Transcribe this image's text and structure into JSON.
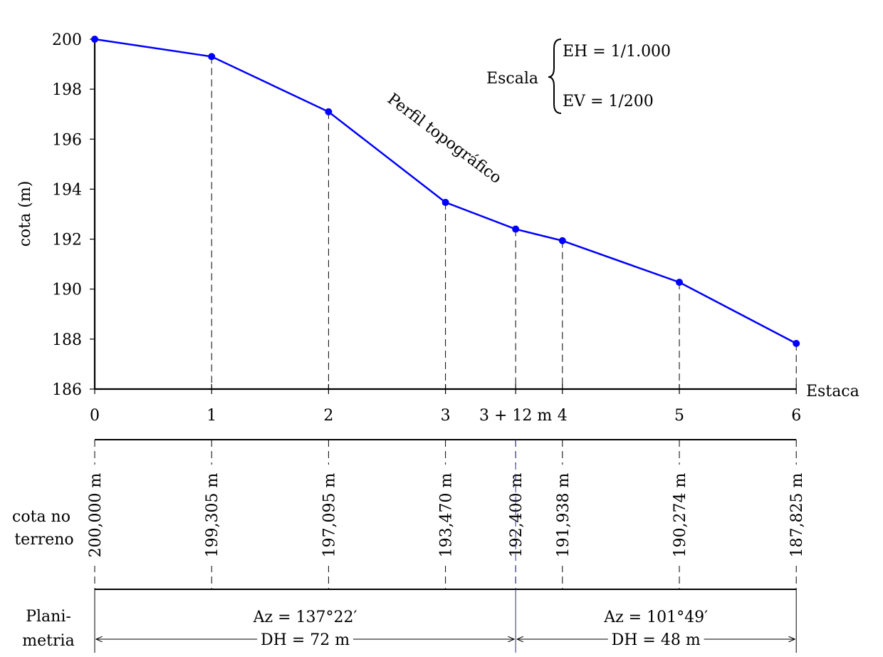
{
  "chart_data": {
    "type": "line",
    "xlabel": "Estaca",
    "ylabel": "cota (m)",
    "ylim": [
      186,
      200
    ],
    "y_ticks": [
      186,
      188,
      190,
      192,
      194,
      196,
      198,
      200
    ],
    "points": [
      {
        "x": 0,
        "y": 200.0,
        "label": "0",
        "cota_text": "200,000 m"
      },
      {
        "x": 1,
        "y": 199.305,
        "label": "1",
        "cota_text": "199,305 m"
      },
      {
        "x": 2,
        "y": 197.095,
        "label": "2",
        "cota_text": "197,095 m"
      },
      {
        "x": 3,
        "y": 193.47,
        "label": "3",
        "cota_text": "193,470 m"
      },
      {
        "x": 3.6,
        "y": 192.4,
        "label": "3 + 12 m",
        "cota_text": "192,400 m"
      },
      {
        "x": 4,
        "y": 191.938,
        "label": "4",
        "cota_text": "191,938 m"
      },
      {
        "x": 5,
        "y": 190.274,
        "label": "5",
        "cota_text": "190,274 m"
      },
      {
        "x": 6,
        "y": 187.825,
        "label": "6",
        "cota_text": "187,825 m"
      }
    ],
    "line_label": "Perfil topográfico",
    "line_color": "#0000ff",
    "scale": {
      "label": "Escala",
      "horizontal": "EH = 1/1.000",
      "vertical": "EV = 1/200"
    },
    "table": {
      "cota_row_label": [
        "cota no",
        "terreno"
      ],
      "plani_row_label": [
        "Plani-",
        "metria"
      ],
      "segments": [
        {
          "from": 0,
          "to": 3.6,
          "azimuth": "Az = 137°22′",
          "distance": "DH = 72 m"
        },
        {
          "from": 3.6,
          "to": 6,
          "azimuth": "Az = 101°49′",
          "distance": "DH = 48 m"
        }
      ]
    }
  }
}
